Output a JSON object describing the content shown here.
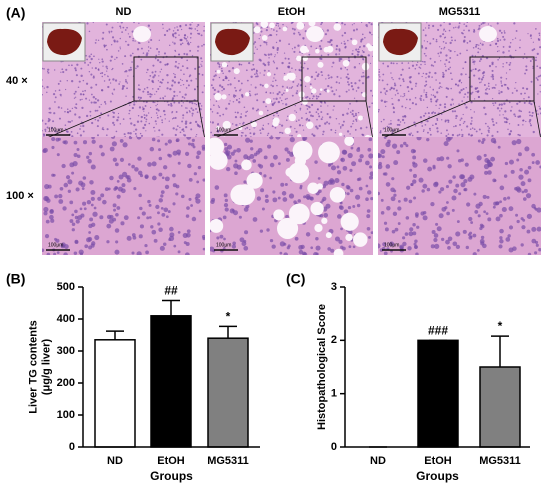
{
  "panel_a": {
    "label": "(A)",
    "columns": [
      "ND",
      "EtOH",
      "MG5311"
    ],
    "rows": [
      "40 ×",
      "100 ×"
    ],
    "scale_bar": "100μm"
  },
  "chart_data": [
    {
      "type": "bar",
      "panel_label": "(B)",
      "ylabel": [
        "Liver TG contents",
        "(μg/g liver)"
      ],
      "xlabel": "Groups",
      "categories": [
        "ND",
        "EtOH",
        "MG5311"
      ],
      "values": [
        335,
        410,
        340
      ],
      "errors": [
        27,
        48,
        37
      ],
      "annotations": [
        null,
        "##",
        "*"
      ],
      "colors": [
        "#ffffff",
        "#000000",
        "#808080"
      ],
      "ylim": [
        0,
        500
      ],
      "yticks": [
        0,
        100,
        200,
        300,
        400,
        500
      ]
    },
    {
      "type": "bar",
      "panel_label": "(C)",
      "ylabel": [
        "Histopathological Score"
      ],
      "xlabel": "Groups",
      "categories": [
        "ND",
        "EtOH",
        "MG5311"
      ],
      "values": [
        0,
        2,
        1.5
      ],
      "errors": [
        0,
        0,
        0.58
      ],
      "annotations": [
        null,
        "###",
        "*"
      ],
      "colors": [
        "#ffffff",
        "#000000",
        "#808080"
      ],
      "ylim": [
        0,
        3
      ],
      "yticks": [
        0,
        1,
        2,
        3
      ]
    }
  ]
}
